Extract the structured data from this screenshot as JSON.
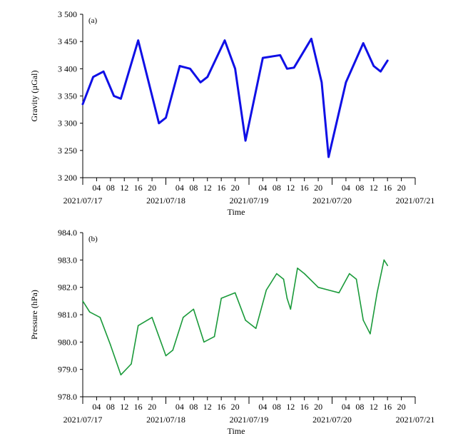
{
  "chart_data": [
    {
      "type": "line",
      "panel_label": "(a)",
      "xlabel": "Time",
      "ylabel": "Gravity (µGal)",
      "ylim": [
        3200,
        3500
      ],
      "yticks": [
        3200,
        3250,
        3300,
        3350,
        3400,
        3450,
        3500
      ],
      "ytick_labels": [
        "3 200",
        "3 250",
        "3 300",
        "3 350",
        "3 400",
        "3 450",
        "3 500"
      ],
      "xlim": [
        "2021-07-17 00:00",
        "2021-07-21 00:00"
      ],
      "hour_tick_labels": [
        "04",
        "08",
        "12",
        "16",
        "20"
      ],
      "date_tick_labels": [
        "2021/07/17",
        "2021/07/18",
        "2021/07/19",
        "2021/07/20",
        "2021/07/21"
      ],
      "line_color": "#1010e6",
      "x": [
        "2021-07-17 00:00",
        "2021-07-17 03:00",
        "2021-07-17 06:00",
        "2021-07-17 09:00",
        "2021-07-17 11:00",
        "2021-07-17 16:00",
        "2021-07-17 22:00",
        "2021-07-18 00:00",
        "2021-07-18 04:00",
        "2021-07-18 07:00",
        "2021-07-18 10:00",
        "2021-07-18 12:00",
        "2021-07-18 17:00",
        "2021-07-18 20:00",
        "2021-07-18 23:00",
        "2021-07-19 04:00",
        "2021-07-19 09:00",
        "2021-07-19 11:00",
        "2021-07-19 13:00",
        "2021-07-19 18:00",
        "2021-07-19 21:00",
        "2021-07-19 23:00",
        "2021-07-20 04:00",
        "2021-07-20 09:00",
        "2021-07-20 12:00",
        "2021-07-20 14:00",
        "2021-07-20 16:00"
      ],
      "y": [
        3335,
        3385,
        3395,
        3350,
        3345,
        3452,
        3300,
        3310,
        3405,
        3400,
        3375,
        3385,
        3452,
        3400,
        3268,
        3420,
        3425,
        3400,
        3402,
        3455,
        3375,
        3238,
        3375,
        3447,
        3405,
        3395,
        3415
      ]
    },
    {
      "type": "line",
      "panel_label": "(b)",
      "xlabel": "Time",
      "ylabel": "Pressure (hPa)",
      "ylim": [
        978.0,
        984.0
      ],
      "yticks": [
        978.0,
        979.0,
        980.0,
        981.0,
        982.0,
        983.0,
        984.0
      ],
      "ytick_labels": [
        "978.0",
        "979.0",
        "980.0",
        "981.0",
        "982.0",
        "983.0",
        "984.0"
      ],
      "xlim": [
        "2021-07-17 00:00",
        "2021-07-21 00:00"
      ],
      "hour_tick_labels": [
        "04",
        "08",
        "12",
        "16",
        "20"
      ],
      "date_tick_labels": [
        "2021/07/17",
        "2021/07/18",
        "2021/07/19",
        "2021/07/20",
        "2021/07/21"
      ],
      "line_color": "#1a9a3a",
      "x": [
        "2021-07-17 00:00",
        "2021-07-17 02:00",
        "2021-07-17 05:00",
        "2021-07-17 08:00",
        "2021-07-17 11:00",
        "2021-07-17 14:00",
        "2021-07-17 16:00",
        "2021-07-17 20:00",
        "2021-07-18 00:00",
        "2021-07-18 02:00",
        "2021-07-18 05:00",
        "2021-07-18 08:00",
        "2021-07-18 11:00",
        "2021-07-18 14:00",
        "2021-07-18 16:00",
        "2021-07-18 20:00",
        "2021-07-18 23:00",
        "2021-07-19 02:00",
        "2021-07-19 05:00",
        "2021-07-19 08:00",
        "2021-07-19 10:00",
        "2021-07-19 11:00",
        "2021-07-19 12:00",
        "2021-07-19 14:00",
        "2021-07-19 16:00",
        "2021-07-19 20:00",
        "2021-07-19 23:00",
        "2021-07-20 02:00",
        "2021-07-20 05:00",
        "2021-07-20 07:00",
        "2021-07-20 09:00",
        "2021-07-20 11:00",
        "2021-07-20 13:00",
        "2021-07-20 15:00",
        "2021-07-20 16:00"
      ],
      "y": [
        981.5,
        981.1,
        980.9,
        979.9,
        978.8,
        979.2,
        980.6,
        980.9,
        979.5,
        979.7,
        980.9,
        981.2,
        980.0,
        980.2,
        981.6,
        981.8,
        980.8,
        980.5,
        981.9,
        982.5,
        982.3,
        981.6,
        981.2,
        982.7,
        982.5,
        982.0,
        981.9,
        981.8,
        982.5,
        982.3,
        980.8,
        980.3,
        981.8,
        983.0,
        982.8
      ]
    }
  ]
}
